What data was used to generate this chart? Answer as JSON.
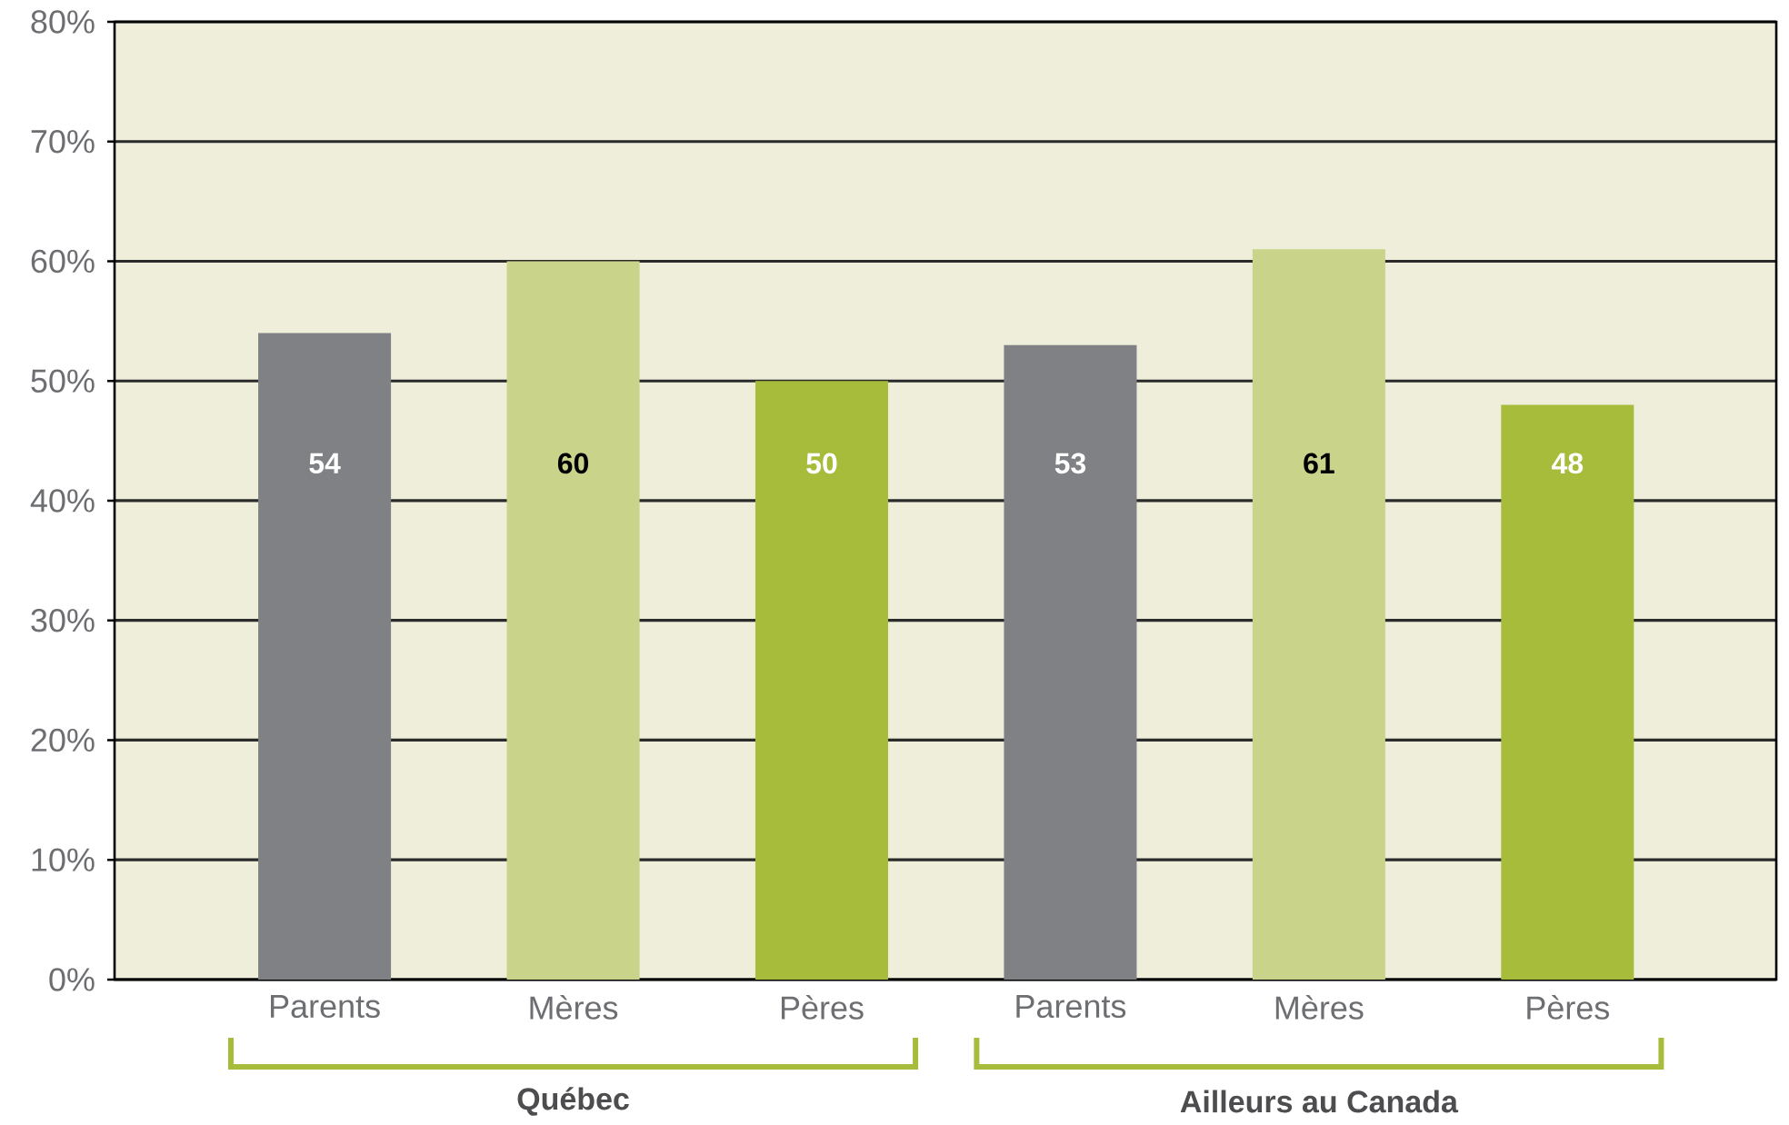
{
  "chart_data": {
    "type": "bar",
    "categories": [
      "Parents",
      "Mères",
      "Pères",
      "Parents",
      "Mères",
      "Pères"
    ],
    "values": [
      54,
      60,
      50,
      53,
      61,
      48
    ],
    "colors": [
      "#808184",
      "#c9d38a",
      "#a8bc3c",
      "#808184",
      "#c9d38a",
      "#a8bc3c"
    ],
    "ylim": [
      0,
      80
    ],
    "yticks": [
      {
        "value": 0,
        "label": "0%"
      },
      {
        "value": 10,
        "label": "10%"
      },
      {
        "value": 20,
        "label": "20%"
      },
      {
        "value": 30,
        "label": "30%"
      },
      {
        "value": 40,
        "label": "40%"
      },
      {
        "value": 50,
        "label": "50%"
      },
      {
        "value": 60,
        "label": "60%"
      },
      {
        "value": 70,
        "label": "70%"
      },
      {
        "value": 80,
        "label": "80%"
      }
    ],
    "grid": "y",
    "data_labels": true,
    "annotations": [
      "Québec",
      "Ailleurs au Canada"
    ]
  }
}
